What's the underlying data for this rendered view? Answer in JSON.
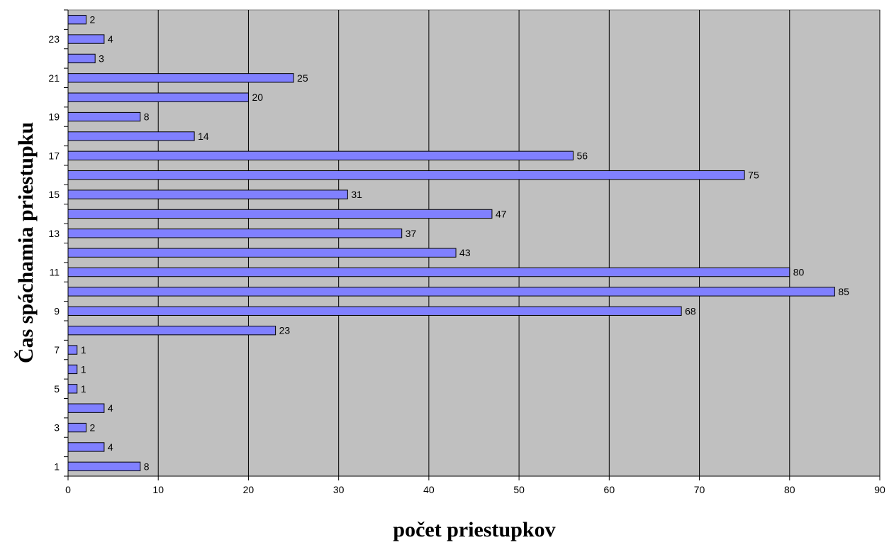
{
  "chart_data": {
    "type": "bar",
    "orientation": "horizontal",
    "categories": [
      1,
      2,
      3,
      4,
      5,
      6,
      7,
      8,
      9,
      10,
      11,
      12,
      13,
      14,
      15,
      16,
      17,
      18,
      19,
      20,
      21,
      22,
      23,
      24
    ],
    "y_tick_labels": [
      "1",
      "3",
      "5",
      "7",
      "9",
      "11",
      "13",
      "15",
      "17",
      "19",
      "21",
      "23"
    ],
    "values": [
      8,
      4,
      2,
      4,
      1,
      1,
      1,
      23,
      68,
      85,
      80,
      43,
      37,
      47,
      31,
      75,
      56,
      14,
      8,
      20,
      25,
      3,
      4,
      2
    ],
    "xlabel": "počet priestupkov",
    "ylabel": "Čas spáchamia priestupku",
    "xlim": [
      0,
      90
    ],
    "x_ticks": [
      0,
      10,
      20,
      30,
      40,
      50,
      60,
      70,
      80,
      90
    ],
    "grid": "vertical",
    "data_labels": true,
    "legend": "none",
    "colors": {
      "bar_fill": "#8080ff",
      "bar_stroke": "#000000",
      "plot_background": "#c0c0c0",
      "grid": "#000000"
    }
  }
}
